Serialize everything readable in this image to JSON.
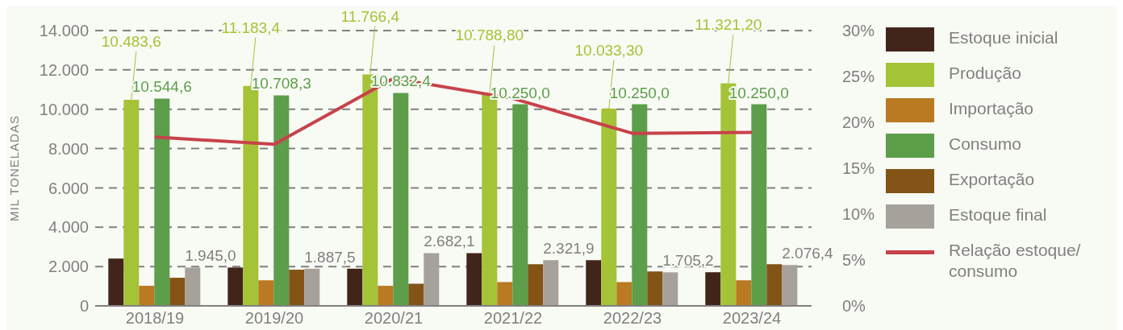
{
  "chart_data": {
    "type": "bar",
    "ylabel": "MIL TONELADAS",
    "categories": [
      "2018/19",
      "2019/20",
      "2020/21",
      "2021/22",
      "2022/23",
      "2023/24"
    ],
    "series": [
      {
        "name": "Estoque inicial",
        "color": "#42251a",
        "values": [
          2400,
          1950,
          1890,
          2680,
          2320,
          1710
        ]
      },
      {
        "name": "Produção",
        "color": "#a5c337",
        "values": [
          10483.6,
          11183.4,
          11766.4,
          10788.8,
          10033.3,
          11321.2
        ],
        "value_labels": [
          "10.483,6",
          "11.183,4",
          "11.766,4",
          "10.788,80",
          "10.033,30",
          "11.321,20"
        ]
      },
      {
        "name": "Importação",
        "color": "#b97a22",
        "values": [
          1020,
          1300,
          1020,
          1210,
          1210,
          1300
        ]
      },
      {
        "name": "Consumo",
        "color": "#5c9e4a",
        "values": [
          10544.6,
          10708.3,
          10832.4,
          10250,
          10250,
          10250
        ],
        "value_labels": [
          "10.544,6",
          "10.708,3",
          "10.832,4",
          "10.250,0",
          "10.250,0",
          "10.250,0"
        ]
      },
      {
        "name": "Exportação",
        "color": "#835416",
        "values": [
          1430,
          1840,
          1130,
          2120,
          1750,
          2120
        ]
      },
      {
        "name": "Estoque final",
        "color": "#a6a19b",
        "values": [
          1945,
          1887.5,
          2682.1,
          2321.9,
          1705.2,
          2076.4
        ],
        "value_labels": [
          "1.945,0",
          "1.887,5",
          "2.682,1",
          "2.321,9",
          "1.705,2",
          "2.076,4"
        ]
      },
      {
        "name": "Relação estoque/ consumo",
        "type": "line",
        "axis": "y2",
        "color": "#c8424a",
        "values": [
          18.4,
          17.6,
          24.8,
          22.6,
          18.8,
          18.9
        ]
      }
    ],
    "ylim": [
      0,
      14000
    ],
    "yticks": [
      {
        "value": 0,
        "label": "0"
      },
      {
        "value": 2000,
        "label": "2.000"
      },
      {
        "value": 4000,
        "label": "4.000"
      },
      {
        "value": 6000,
        "label": "6.000"
      },
      {
        "value": 8000,
        "label": "8.000"
      },
      {
        "value": 10000,
        "label": "10.000"
      },
      {
        "value": 12000,
        "label": "12.000"
      },
      {
        "value": 14000,
        "label": "14.000"
      }
    ],
    "y2lim": [
      0,
      30
    ],
    "y2ticks": [
      {
        "value": 0,
        "label": "0%"
      },
      {
        "value": 5,
        "label": "5%"
      },
      {
        "value": 10,
        "label": "10%"
      },
      {
        "value": 15,
        "label": "15%"
      },
      {
        "value": 20,
        "label": "20%"
      },
      {
        "value": 25,
        "label": "25%"
      },
      {
        "value": 30,
        "label": "30%"
      }
    ],
    "grid": "y",
    "legend": "right",
    "marker": "none",
    "line_style": "solid"
  }
}
